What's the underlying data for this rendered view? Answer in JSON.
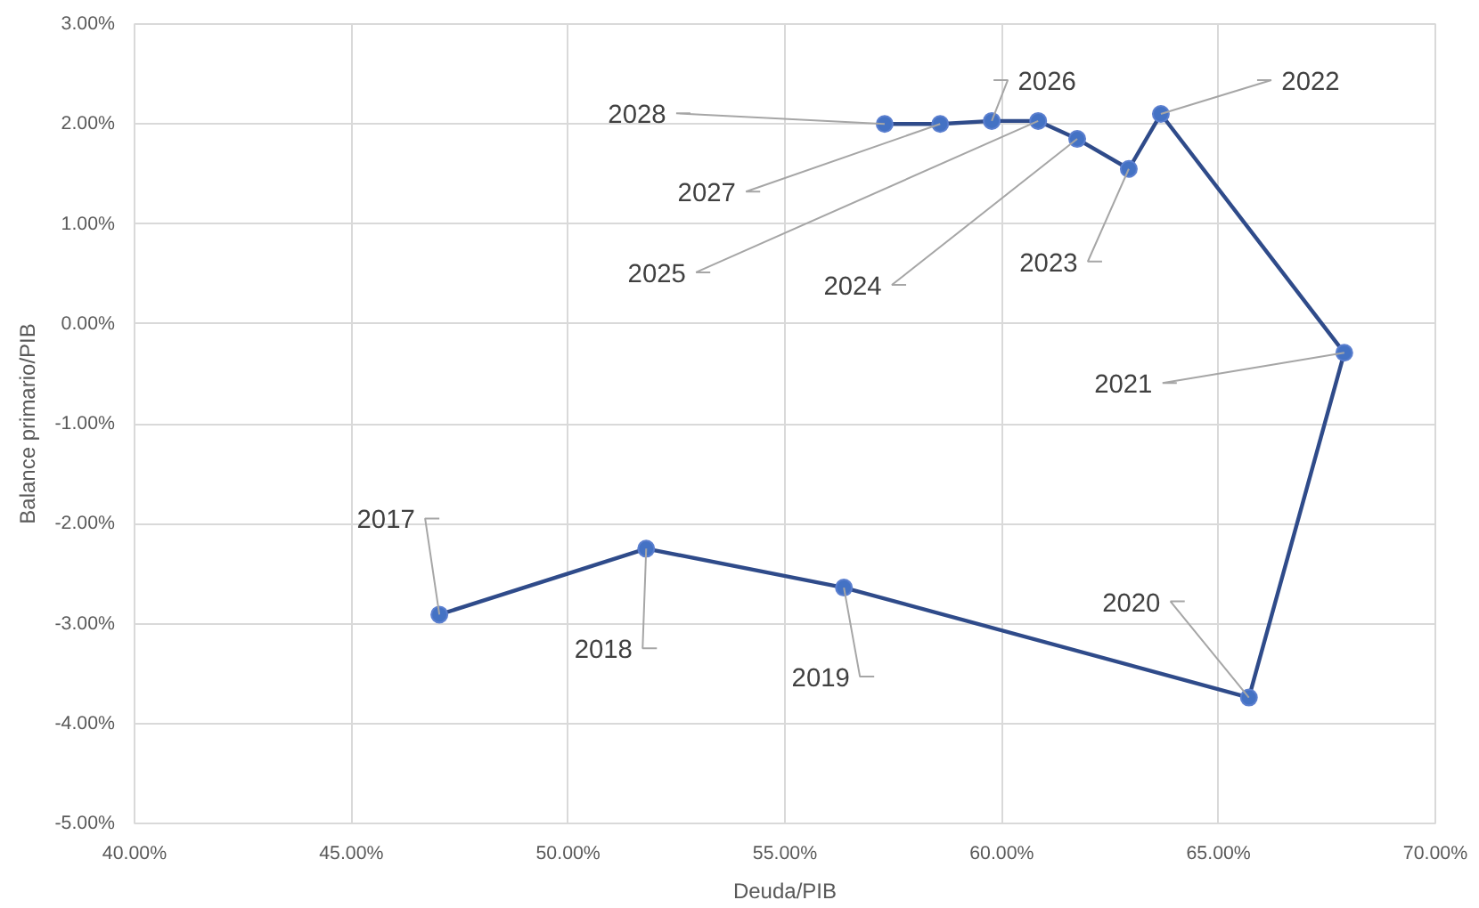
{
  "chart_data": {
    "type": "line",
    "xlabel": "Deuda/PIB",
    "ylabel": "Balance primario/PIB",
    "series": [
      {
        "color": "#2f4b8a",
        "x": [
          47.03,
          51.8,
          56.36,
          65.7,
          67.9,
          63.67,
          62.93,
          61.74,
          60.84,
          59.77,
          58.58,
          57.3
        ],
        "values": [
          -2.91,
          -2.25,
          -2.64,
          -3.74,
          -0.29,
          2.1,
          1.55,
          1.85,
          2.03,
          2.03,
          2.0,
          2.0
        ]
      }
    ],
    "marker": "circle",
    "line_style": "solid",
    "grid": true,
    "xlim": [
      40,
      70
    ],
    "xticks": [
      {
        "value": 40,
        "label": "40.00%"
      },
      {
        "value": 45,
        "label": "45.00%"
      },
      {
        "value": 50,
        "label": "50.00%"
      },
      {
        "value": 55,
        "label": "55.00%"
      },
      {
        "value": 60,
        "label": "60.00%"
      },
      {
        "value": 65,
        "label": "65.00%"
      },
      {
        "value": 70,
        "label": "70.00%"
      }
    ],
    "ylim": [
      -5,
      3
    ],
    "yticks": [
      {
        "value": -5,
        "label": "-5.00%"
      },
      {
        "value": -4,
        "label": "-4.00%"
      },
      {
        "value": -3,
        "label": "-3.00%"
      },
      {
        "value": -2,
        "label": "-2.00%"
      },
      {
        "value": -1,
        "label": "-1.00%"
      },
      {
        "value": 0,
        "label": "0.00%"
      },
      {
        "value": 1,
        "label": "1.00%"
      },
      {
        "value": 2,
        "label": "2.00%"
      },
      {
        "value": 3,
        "label": "3.00%"
      }
    ],
    "annotations": [
      {
        "text": "2017",
        "x": 47.03,
        "y": -2.91
      },
      {
        "text": "2018",
        "x": 51.8,
        "y": -2.25
      },
      {
        "text": "2019",
        "x": 56.36,
        "y": -2.64
      },
      {
        "text": "2020",
        "x": 65.7,
        "y": -3.74
      },
      {
        "text": "2021",
        "x": 67.9,
        "y": -0.29
      },
      {
        "text": "2022",
        "x": 63.67,
        "y": 2.1
      },
      {
        "text": "2023",
        "x": 62.93,
        "y": 1.55
      },
      {
        "text": "2024",
        "x": 61.74,
        "y": 1.85
      },
      {
        "text": "2025",
        "x": 60.84,
        "y": 2.03
      },
      {
        "text": "2026",
        "x": 59.77,
        "y": 2.03
      },
      {
        "text": "2027",
        "x": 58.58,
        "y": 2.0
      },
      {
        "text": "2028",
        "x": 57.3,
        "y": 2.0
      }
    ]
  }
}
